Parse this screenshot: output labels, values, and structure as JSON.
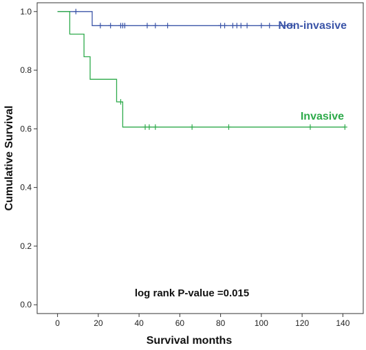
{
  "chart_data": {
    "type": "line",
    "subtype": "kaplan-meier",
    "xlabel": "Survival months",
    "ylabel": "Cumulative Survival",
    "xlim": [
      -10,
      150
    ],
    "ylim": [
      -0.03,
      1.03
    ],
    "xticks": [
      0,
      20,
      40,
      60,
      80,
      100,
      120,
      140
    ],
    "yticks": [
      0.0,
      0.2,
      0.4,
      0.6,
      0.8,
      1.0
    ],
    "ytick_labels": [
      "0.0",
      "0.2",
      "0.4",
      "0.6",
      "0.8",
      "1.0"
    ],
    "grid": false,
    "annotation": "log rank P-value =0.015",
    "series": [
      {
        "name": "Non-invasive",
        "color": "#3b55a8",
        "steps": [
          [
            0,
            1.0
          ],
          [
            17,
            1.0
          ],
          [
            17,
            0.952
          ],
          [
            115,
            0.952
          ]
        ],
        "censored": [
          [
            9,
            1.0
          ],
          [
            21,
            0.952
          ],
          [
            26,
            0.952
          ],
          [
            31,
            0.952
          ],
          [
            32,
            0.952
          ],
          [
            33,
            0.952
          ],
          [
            44,
            0.952
          ],
          [
            48,
            0.952
          ],
          [
            54,
            0.952
          ],
          [
            80,
            0.952
          ],
          [
            82,
            0.952
          ],
          [
            86,
            0.952
          ],
          [
            88,
            0.952
          ],
          [
            90,
            0.952
          ],
          [
            93,
            0.952
          ],
          [
            100,
            0.952
          ],
          [
            104,
            0.952
          ],
          [
            115,
            0.952
          ]
        ]
      },
      {
        "name": "Invasive",
        "color": "#2daa4a",
        "steps": [
          [
            0,
            1.0
          ],
          [
            6,
            1.0
          ],
          [
            6,
            0.923
          ],
          [
            13,
            0.923
          ],
          [
            13,
            0.846
          ],
          [
            16,
            0.846
          ],
          [
            16,
            0.769
          ],
          [
            29,
            0.769
          ],
          [
            29,
            0.692
          ],
          [
            32,
            0.692
          ],
          [
            32,
            0.606
          ],
          [
            141,
            0.606
          ]
        ],
        "censored": [
          [
            31,
            0.692
          ],
          [
            43,
            0.606
          ],
          [
            45,
            0.606
          ],
          [
            48,
            0.606
          ],
          [
            66,
            0.606
          ],
          [
            84,
            0.606
          ],
          [
            124,
            0.606
          ],
          [
            141,
            0.606
          ]
        ]
      }
    ]
  }
}
